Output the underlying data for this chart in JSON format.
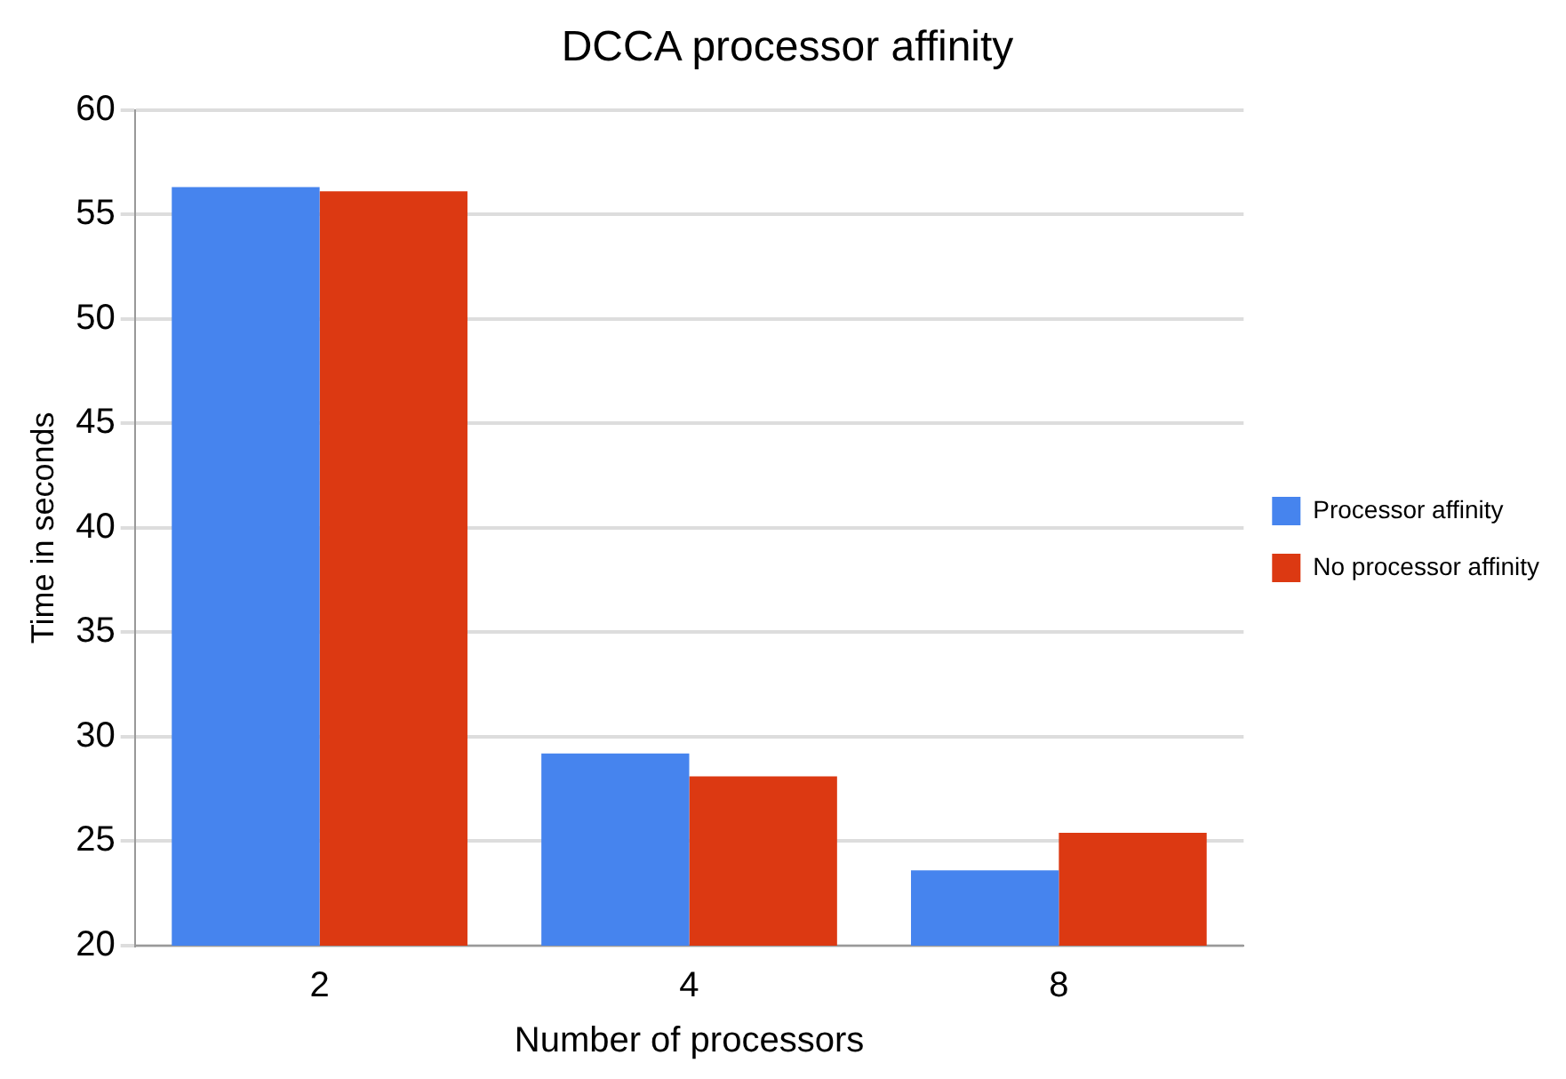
{
  "chart_data": {
    "type": "bar",
    "title": "DCCA processor affinity",
    "xlabel": "Number of processors",
    "ylabel": "Time in seconds",
    "categories": [
      "2",
      "4",
      "8"
    ],
    "series": [
      {
        "name": "Processor affinity",
        "color": "#4684ee",
        "values": [
          56.3,
          29.2,
          23.6
        ]
      },
      {
        "name": "No processor affinity",
        "color": "#dc3912",
        "values": [
          56.1,
          28.1,
          25.4
        ]
      }
    ],
    "ylim": [
      20,
      60
    ],
    "yticks": [
      20,
      25,
      30,
      35,
      40,
      45,
      50,
      55,
      60
    ],
    "grid": "y",
    "legend": "right"
  }
}
